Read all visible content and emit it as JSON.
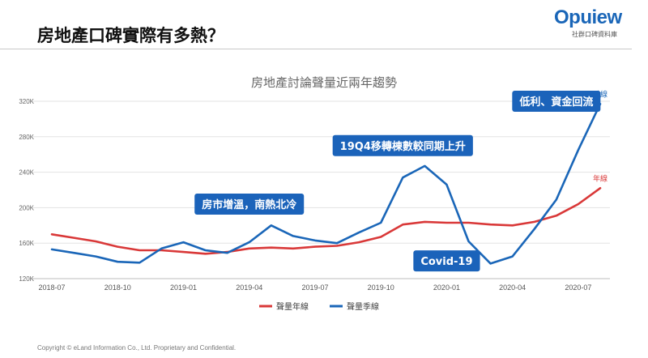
{
  "header": {
    "title": "房地產口碑實際有多熱？",
    "logo_text": "Opuiew",
    "logo_sub": "社群口碑資料庫"
  },
  "footer": {
    "copyright": "Copyright © eLand Information Co., Ltd. Proprietary and Confidential."
  },
  "colors": {
    "yearly": "#d93838",
    "quarterly": "#1a66b8",
    "callout_bg": "#1b63ba",
    "grid": "#e3e3e3"
  },
  "chart_data": {
    "type": "line",
    "title": "房地產討論聲量近兩年趨勢",
    "xlabel": "",
    "ylabel": "",
    "x": [
      "2018-07",
      "2018-08",
      "2018-09",
      "2018-10",
      "2018-11",
      "2018-12",
      "2019-01",
      "2019-02",
      "2019-03",
      "2019-04",
      "2019-05",
      "2019-06",
      "2019-07",
      "2019-08",
      "2019-09",
      "2019-10",
      "2019-11",
      "2019-12",
      "2020-01",
      "2020-02",
      "2020-03",
      "2020-04",
      "2020-05",
      "2020-06",
      "2020-07",
      "2020-08"
    ],
    "x_ticks": [
      "2018-07",
      "2018-10",
      "2019-01",
      "2019-04",
      "2019-07",
      "2019-10",
      "2020-01",
      "2020-04",
      "2020-07"
    ],
    "y_ticks": [
      120,
      160,
      200,
      240,
      280,
      320
    ],
    "y_tick_labels": [
      "120K",
      "160K",
      "200K",
      "240K",
      "280K",
      "320K"
    ],
    "ylim": [
      120,
      320
    ],
    "grid": "horizontal",
    "legend_position": "bottom-center",
    "series": [
      {
        "name": "聲量年線",
        "end_label": "年線",
        "values": [
          170,
          166,
          162,
          156,
          152,
          152,
          150,
          148,
          150,
          154,
          155,
          154,
          156,
          157,
          161,
          167,
          181,
          184,
          183,
          183,
          181,
          180,
          184,
          191,
          204,
          222
        ]
      },
      {
        "name": "聲量季線",
        "end_label": "季線",
        "values": [
          153,
          149,
          145,
          139,
          138,
          154,
          161,
          152,
          149,
          161,
          180,
          168,
          163,
          160,
          172,
          183,
          234,
          247,
          226,
          162,
          137,
          145,
          176,
          209,
          265,
          317
        ]
      }
    ],
    "annotations": [
      {
        "text": "房市增溫，南熱北冷",
        "anchor_x": "2019-04",
        "anchor_y": 204
      },
      {
        "text": "19Q4移轉棟數較同期上升",
        "anchor_x": "2019-11",
        "anchor_y": 270
      },
      {
        "text": "Covid-19",
        "anchor_x": "2020-01",
        "anchor_y": 140
      },
      {
        "text": "低利、資金回流",
        "anchor_x": "2020-06",
        "anchor_y": 320
      }
    ]
  }
}
